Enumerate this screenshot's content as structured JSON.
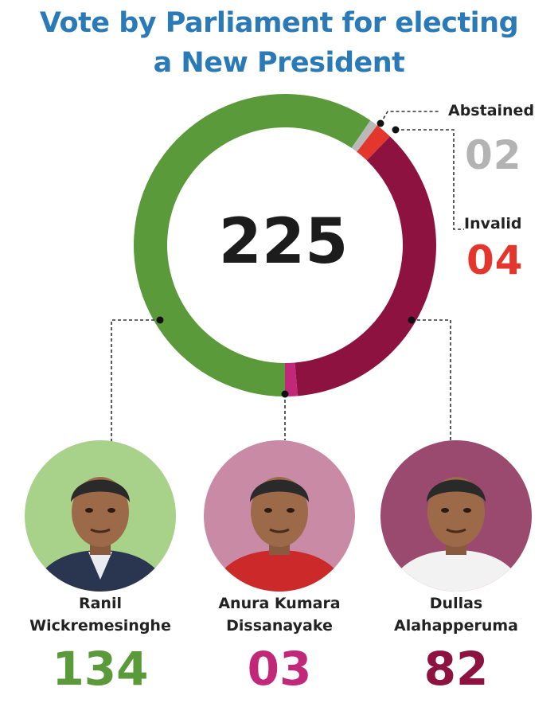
{
  "title_line1": "Vote by Parliament for electing",
  "title_line2": "a New President",
  "chart_data": {
    "type": "donut",
    "total": "225",
    "start_angle_deg": 180,
    "series": [
      {
        "name": "Ranil Wickremesinghe",
        "votes": "134",
        "value": 134,
        "color": "#5a9a3a"
      },
      {
        "name": "Abstained",
        "votes": "02",
        "value": 2,
        "color": "#b9b9b9"
      },
      {
        "name": "Invalid",
        "votes": "04",
        "value": 4,
        "color": "#e3372d"
      },
      {
        "name": "Dullas Alahapperuma",
        "votes": "82",
        "value": 82,
        "color": "#8e1240"
      },
      {
        "name": "Anura Kumara Dissanayake",
        "votes": "03",
        "value": 3,
        "color": "#c2287a"
      }
    ]
  },
  "callouts": {
    "abstained": {
      "label": "Abstained",
      "value": "02",
      "color": "#b3b3b3"
    },
    "invalid": {
      "label": "Invalid",
      "value": "04",
      "color": "#e3372d"
    }
  },
  "candidates": [
    {
      "name_line1": "Ranil",
      "name_line2": "Wickremesinghe",
      "votes": "134",
      "color": "#5a9a3a",
      "photo_bg": "#a8d18a",
      "suit": "#2a3550",
      "shirt": "#ffffff"
    },
    {
      "name_line1": "Anura Kumara",
      "name_line2": "Dissanayake",
      "votes": "03",
      "color": "#c2287a",
      "photo_bg": "#c98aa6",
      "suit": "#cc2a2a",
      "shirt": "#cc2a2a"
    },
    {
      "name_line1": "Dullas",
      "name_line2": "Alahapperuma",
      "votes": "82",
      "color": "#8e1240",
      "photo_bg": "#9a4a6e",
      "suit": "#f2f2f2",
      "shirt": "#f2f2f2"
    }
  ]
}
